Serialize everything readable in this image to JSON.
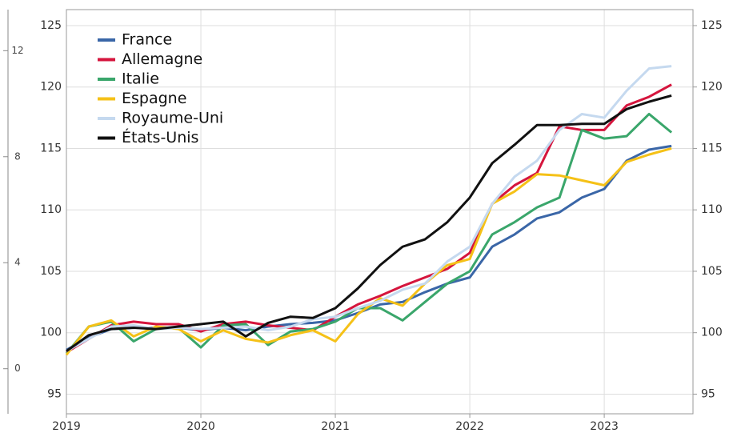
{
  "chart_data": {
    "type": "line",
    "x": [
      2019.0,
      2019.1667,
      2019.3333,
      2019.5,
      2019.6667,
      2019.8333,
      2020.0,
      2020.1667,
      2020.3333,
      2020.5,
      2020.6667,
      2020.8333,
      2021.0,
      2021.1667,
      2021.3333,
      2021.5,
      2021.6667,
      2021.8333,
      2022.0,
      2022.1667,
      2022.3333,
      2022.5,
      2022.6667,
      2022.8333,
      2023.0,
      2023.1667,
      2023.3333,
      2023.5
    ],
    "series": [
      {
        "name": "France",
        "color": "#3a66a7",
        "values": [
          98.6,
          99.6,
          100.3,
          100.4,
          100.4,
          100.4,
          100.2,
          100.4,
          100.2,
          100.5,
          100.7,
          100.8,
          101.0,
          101.6,
          102.3,
          102.5,
          103.3,
          104.0,
          104.5,
          107.0,
          108.0,
          109.3,
          109.8,
          111.0,
          111.7,
          114.0,
          114.9,
          115.2
        ]
      },
      {
        "name": "Allemagne",
        "color": "#d5153d",
        "values": [
          98.4,
          99.5,
          100.6,
          100.9,
          100.7,
          100.7,
          100.1,
          100.7,
          100.9,
          100.6,
          100.4,
          100.2,
          101.3,
          102.3,
          103.0,
          103.8,
          104.5,
          105.2,
          106.5,
          110.5,
          112.0,
          113.0,
          116.8,
          116.5,
          116.5,
          118.5,
          119.2,
          120.2
        ]
      },
      {
        "name": "Italie",
        "color": "#3aa66b",
        "values": [
          98.3,
          100.5,
          100.9,
          99.3,
          100.3,
          100.4,
          98.8,
          100.6,
          100.7,
          99.0,
          100.1,
          100.3,
          100.9,
          102.0,
          102.0,
          101.0,
          102.5,
          104.0,
          105.0,
          108.0,
          109.0,
          110.2,
          111.0,
          116.5,
          115.8,
          116.0,
          117.8,
          116.3
        ]
      },
      {
        "name": "Espagne",
        "color": "#f5c117",
        "values": [
          98.2,
          100.5,
          101.0,
          99.7,
          100.5,
          100.3,
          99.3,
          100.2,
          99.5,
          99.2,
          99.8,
          100.2,
          99.3,
          101.5,
          102.8,
          102.2,
          104.0,
          105.5,
          106.0,
          110.5,
          111.5,
          112.9,
          112.8,
          112.4,
          112.0,
          113.9,
          114.5,
          115.0
        ]
      },
      {
        "name": "Royaume-Uni",
        "color": "#c5d9ef",
        "values": [
          98.5,
          99.5,
          100.5,
          100.6,
          100.3,
          100.4,
          100.3,
          100.4,
          100.5,
          100.2,
          100.5,
          101.1,
          101.3,
          102.0,
          102.6,
          103.5,
          104.0,
          105.8,
          107.0,
          110.5,
          112.7,
          114.0,
          116.5,
          117.8,
          117.5,
          119.7,
          121.5,
          121.7
        ]
      },
      {
        "name": "États-Unis",
        "color": "#111111",
        "values": [
          98.5,
          99.8,
          100.3,
          100.4,
          100.3,
          100.5,
          100.7,
          100.9,
          99.7,
          100.8,
          101.3,
          101.2,
          102.0,
          103.6,
          105.5,
          107.0,
          107.6,
          109.0,
          111.0,
          113.8,
          115.3,
          116.9,
          116.9,
          117.0,
          117.0,
          118.2,
          118.8,
          119.3
        ]
      }
    ],
    "xlim": [
      2019.0,
      2023.66
    ],
    "xticks": [
      2019,
      2020,
      2021,
      2022,
      2023
    ],
    "ylim": [
      93.4,
      126.3
    ],
    "yticks": [
      95,
      100,
      105,
      110,
      115,
      120,
      125
    ],
    "y2lim": [
      93.4,
      126.3
    ],
    "y2ticks": [
      95,
      100,
      105,
      110,
      115,
      120,
      125
    ],
    "y3lim": [
      -1.7,
      13.55
    ],
    "y3ticks": [
      0,
      4,
      8,
      12
    ],
    "grid": true,
    "legend": "top-left"
  }
}
